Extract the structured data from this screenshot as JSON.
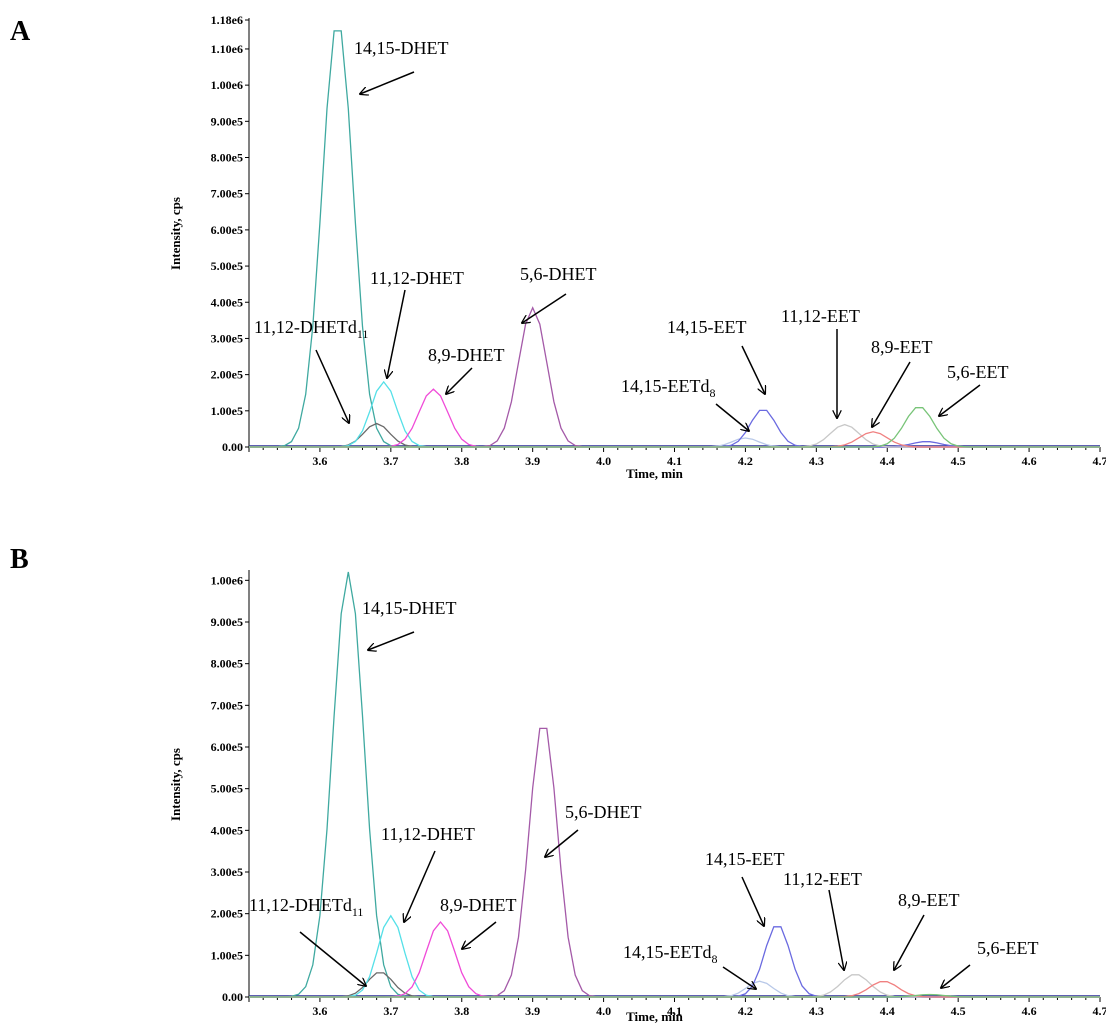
{
  "chart_data": [
    {
      "panel_label": "A",
      "type": "line",
      "xlabel": "Time, min",
      "ylabel": "Intensity, cps",
      "xlim": [
        3.5,
        4.7
      ],
      "ylim": [
        0,
        1180000
      ],
      "x_ticks": [
        "3.6",
        "3.7",
        "3.8",
        "3.9",
        "4.0",
        "4.1",
        "4.2",
        "4.3",
        "4.4",
        "4.5",
        "4.6",
        "4.7"
      ],
      "y_ticks": [
        {
          "value": 0,
          "label": "0.00"
        },
        {
          "value": 100000,
          "label": "1.00e5"
        },
        {
          "value": 200000,
          "label": "2.00e5"
        },
        {
          "value": 300000,
          "label": "3.00e5"
        },
        {
          "value": 400000,
          "label": "4.00e5"
        },
        {
          "value": 500000,
          "label": "5.00e5"
        },
        {
          "value": 600000,
          "label": "6.00e5"
        },
        {
          "value": 700000,
          "label": "7.00e5"
        },
        {
          "value": 800000,
          "label": "8.00e5"
        },
        {
          "value": 900000,
          "label": "9.00e5"
        },
        {
          "value": 1000000,
          "label": "1.00e6"
        },
        {
          "value": 1100000,
          "label": "1.10e6"
        },
        {
          "value": 1180000,
          "label": "1.18e6"
        }
      ],
      "series": [
        {
          "color": "#3fa9a0",
          "peaks": [
            {
              "x": 3.625,
              "y": 1180000,
              "w": 0.022
            }
          ]
        },
        {
          "color": "#6a6a6a",
          "peaks": [
            {
              "x": 3.68,
              "y": 65000,
              "w": 0.018
            }
          ]
        },
        {
          "color": "#55e0e8",
          "peaks": [
            {
              "x": 3.69,
              "y": 180000,
              "w": 0.018
            }
          ]
        },
        {
          "color": "#f04bd8",
          "peaks": [
            {
              "x": 3.76,
              "y": 160000,
              "w": 0.02
            }
          ]
        },
        {
          "color": "#a45aa8",
          "peaks": [
            {
              "x": 3.9,
              "y": 385000,
              "w": 0.02
            }
          ]
        },
        {
          "color": "#b8c8e8",
          "peaks": [
            {
              "x": 4.2,
              "y": 25000,
              "w": 0.018
            }
          ]
        },
        {
          "color": "#6a6ae0",
          "peaks": [
            {
              "x": 4.225,
              "y": 105000,
              "w": 0.018
            },
            {
              "x": 4.455,
              "y": 15000,
              "w": 0.02
            }
          ]
        },
        {
          "color": "#c8c8c8",
          "peaks": [
            {
              "x": 4.34,
              "y": 62000,
              "w": 0.02
            }
          ]
        },
        {
          "color": "#f08080",
          "peaks": [
            {
              "x": 4.38,
              "y": 42000,
              "w": 0.02
            }
          ]
        },
        {
          "color": "#78c478",
          "peaks": [
            {
              "x": 4.445,
              "y": 112000,
              "w": 0.02
            }
          ]
        }
      ],
      "annotations": [
        {
          "text": "14,15-DHET",
          "sub": ""
        },
        {
          "text": "11,12-DHET",
          "sub": ""
        },
        {
          "text": "11,12-DHETd",
          "sub": "11"
        },
        {
          "text": "8,9-DHET",
          "sub": ""
        },
        {
          "text": "5,6-DHET",
          "sub": ""
        },
        {
          "text": "14,15-EET",
          "sub": ""
        },
        {
          "text": "14,15-EETd",
          "sub": "8"
        },
        {
          "text": "11,12-EET",
          "sub": ""
        },
        {
          "text": "8,9-EET",
          "sub": ""
        },
        {
          "text": "5,6-EET",
          "sub": ""
        }
      ]
    },
    {
      "panel_label": "B",
      "type": "line",
      "xlabel": "Time, min",
      "ylabel": "Intensity, cps",
      "xlim": [
        3.5,
        4.7
      ],
      "ylim": [
        0,
        1020000
      ],
      "x_ticks": [
        "3.6",
        "3.7",
        "3.8",
        "3.9",
        "4.0",
        "4.1",
        "4.2",
        "4.3",
        "4.4",
        "4.5",
        "4.6",
        "4.7"
      ],
      "y_ticks": [
        {
          "value": 0,
          "label": "0.00"
        },
        {
          "value": 100000,
          "label": "1.00e5"
        },
        {
          "value": 200000,
          "label": "2.00e5"
        },
        {
          "value": 300000,
          "label": "3.00e5"
        },
        {
          "value": 400000,
          "label": "4.00e5"
        },
        {
          "value": 500000,
          "label": "5.00e5"
        },
        {
          "value": 600000,
          "label": "6.00e5"
        },
        {
          "value": 700000,
          "label": "7.00e5"
        },
        {
          "value": 800000,
          "label": "8.00e5"
        },
        {
          "value": 900000,
          "label": "9.00e5"
        },
        {
          "value": 1000000,
          "label": "1.00e6"
        }
      ],
      "series": [
        {
          "color": "#3fa9a0",
          "peaks": [
            {
              "x": 3.64,
              "y": 1020000,
              "w": 0.022
            }
          ]
        },
        {
          "color": "#6a6a6a",
          "peaks": [
            {
              "x": 3.685,
              "y": 60000,
              "w": 0.018
            }
          ]
        },
        {
          "color": "#55e0e8",
          "peaks": [
            {
              "x": 3.7,
              "y": 195000,
              "w": 0.018
            }
          ]
        },
        {
          "color": "#f04bd8",
          "peaks": [
            {
              "x": 3.77,
              "y": 180000,
              "w": 0.02
            }
          ]
        },
        {
          "color": "#a45aa8",
          "peaks": [
            {
              "x": 3.915,
              "y": 665000,
              "w": 0.02
            }
          ]
        },
        {
          "color": "#b8c8e8",
          "peaks": [
            {
              "x": 4.22,
              "y": 38000,
              "w": 0.018
            }
          ]
        },
        {
          "color": "#6a6ae0",
          "peaks": [
            {
              "x": 4.245,
              "y": 175000,
              "w": 0.018
            }
          ]
        },
        {
          "color": "#c8c8c8",
          "peaks": [
            {
              "x": 4.355,
              "y": 55000,
              "w": 0.02
            }
          ]
        },
        {
          "color": "#f08080",
          "peaks": [
            {
              "x": 4.395,
              "y": 38000,
              "w": 0.02
            }
          ]
        },
        {
          "color": "#78c478",
          "peaks": [
            {
              "x": 4.46,
              "y": 6000,
              "w": 0.02
            }
          ]
        }
      ],
      "annotations": [
        {
          "text": "14,15-DHET",
          "sub": ""
        },
        {
          "text": "11,12-DHET",
          "sub": ""
        },
        {
          "text": "11,12-DHETd",
          "sub": "11"
        },
        {
          "text": "8,9-DHET",
          "sub": ""
        },
        {
          "text": "5,6-DHET",
          "sub": ""
        },
        {
          "text": "14,15-EET",
          "sub": ""
        },
        {
          "text": "14,15-EETd",
          "sub": "8"
        },
        {
          "text": "11,12-EET",
          "sub": ""
        },
        {
          "text": "8,9-EET",
          "sub": ""
        },
        {
          "text": "5,6-EET",
          "sub": ""
        }
      ]
    }
  ]
}
